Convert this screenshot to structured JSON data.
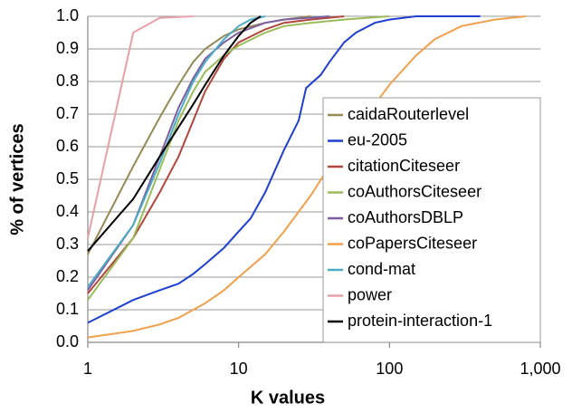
{
  "chart_data": {
    "type": "line",
    "xlabel": "K  values",
    "ylabel": "% of vertices",
    "xscale": "log",
    "grid": true,
    "xlim": [
      1,
      1000
    ],
    "ylim": [
      0,
      1
    ],
    "xticks": [
      1,
      10,
      100,
      {
        "value": 1000,
        "label": "1,000"
      }
    ],
    "yticks": [
      {
        "value": 0,
        "label": "0.0"
      },
      0.1,
      0.2,
      0.3,
      0.4,
      0.5,
      0.6,
      0.7,
      0.8,
      0.9,
      {
        "value": 1,
        "label": "1.0"
      }
    ],
    "series": [
      {
        "name": "caidaRouterlevel",
        "color": "#948a54",
        "x": [
          1,
          2,
          3,
          4,
          5,
          6,
          8,
          10,
          15,
          20,
          30
        ],
        "values": [
          0.27,
          0.54,
          0.69,
          0.79,
          0.86,
          0.9,
          0.94,
          0.96,
          0.98,
          0.99,
          1.0
        ]
      },
      {
        "name": "eu-2005",
        "color": "#1f3fd0",
        "x": [
          1,
          2,
          3,
          4,
          5,
          6,
          8,
          10,
          12,
          15,
          20,
          25,
          28,
          35,
          40,
          50,
          60,
          80,
          100,
          150,
          400
        ],
        "values": [
          0.06,
          0.13,
          0.16,
          0.18,
          0.21,
          0.24,
          0.29,
          0.34,
          0.38,
          0.46,
          0.59,
          0.68,
          0.78,
          0.82,
          0.86,
          0.92,
          0.95,
          0.98,
          0.99,
          1.0,
          1.0
        ]
      },
      {
        "name": "citationCiteseer",
        "color": "#b0463c",
        "x": [
          1,
          2,
          3,
          4,
          5,
          6,
          8,
          10,
          15,
          20,
          30,
          50
        ],
        "values": [
          0.15,
          0.32,
          0.46,
          0.57,
          0.68,
          0.77,
          0.87,
          0.92,
          0.96,
          0.98,
          0.99,
          1.0
        ]
      },
      {
        "name": "coAuthorsCiteseer",
        "color": "#9bbb59",
        "x": [
          1,
          2,
          3,
          4,
          5,
          6,
          8,
          10,
          15,
          20,
          30,
          50,
          100
        ],
        "values": [
          0.13,
          0.32,
          0.53,
          0.68,
          0.77,
          0.83,
          0.88,
          0.91,
          0.95,
          0.97,
          0.98,
          0.99,
          1.0
        ]
      },
      {
        "name": "coAuthorsDBLP",
        "color": "#7b5fa0",
        "x": [
          1,
          2,
          3,
          4,
          5,
          6,
          8,
          10,
          15,
          20,
          40
        ],
        "values": [
          0.16,
          0.36,
          0.57,
          0.72,
          0.81,
          0.87,
          0.92,
          0.95,
          0.98,
          0.99,
          1.0
        ]
      },
      {
        "name": "coPapersCiteseer",
        "color": "#f0a04b",
        "x": [
          1,
          2,
          3,
          4,
          6,
          8,
          10,
          15,
          20,
          30,
          40,
          50,
          60,
          80,
          100,
          150,
          200,
          300,
          500,
          800
        ],
        "values": [
          0.015,
          0.035,
          0.055,
          0.075,
          0.12,
          0.16,
          0.2,
          0.27,
          0.34,
          0.45,
          0.54,
          0.6,
          0.65,
          0.73,
          0.79,
          0.88,
          0.93,
          0.97,
          0.99,
          1.0
        ]
      },
      {
        "name": "cond-mat",
        "color": "#4bacc6",
        "x": [
          1,
          2,
          3,
          4,
          5,
          6,
          8,
          10,
          12,
          15
        ],
        "values": [
          0.17,
          0.36,
          0.55,
          0.7,
          0.8,
          0.86,
          0.93,
          0.97,
          0.99,
          1.0
        ]
      },
      {
        "name": "power",
        "color": "#e6a0a8",
        "x": [
          1,
          2,
          3,
          5
        ],
        "values": [
          0.32,
          0.95,
          0.995,
          1.0
        ]
      },
      {
        "name": "protein-interaction-1",
        "color": "#000000",
        "x": [
          1,
          2,
          3,
          4,
          5,
          6,
          8,
          10,
          12,
          14
        ],
        "values": [
          0.28,
          0.44,
          0.57,
          0.66,
          0.73,
          0.79,
          0.88,
          0.94,
          0.98,
          1.0
        ]
      }
    ]
  }
}
